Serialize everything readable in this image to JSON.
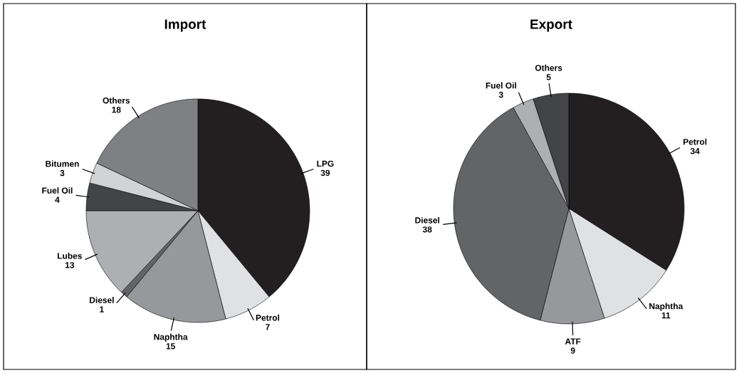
{
  "chart_data": [
    {
      "type": "pie",
      "title": "Import",
      "categories": [
        "LPG",
        "Petrol",
        "Naphtha",
        "Diesel",
        "Lubes",
        "Fuel Oil",
        "Bitumen",
        "Others"
      ],
      "values": [
        39,
        7,
        15,
        1,
        13,
        4,
        3,
        18
      ],
      "colors": [
        "#231f20",
        "#e0e1e3",
        "#97989b",
        "#636466",
        "#aeafb2",
        "#434446",
        "#d2d3d5",
        "#7f8084"
      ],
      "data_labels": true
    },
    {
      "type": "pie",
      "title": "Export",
      "categories": [
        "Petrol",
        "Naphtha",
        "ATF",
        "Diesel",
        "Fuel Oil",
        "Others"
      ],
      "values": [
        34,
        11,
        9,
        38,
        3,
        5
      ],
      "colors": [
        "#231f20",
        "#e0e1e3",
        "#97989b",
        "#636466",
        "#aeafb2",
        "#434446"
      ],
      "data_labels": true
    }
  ]
}
